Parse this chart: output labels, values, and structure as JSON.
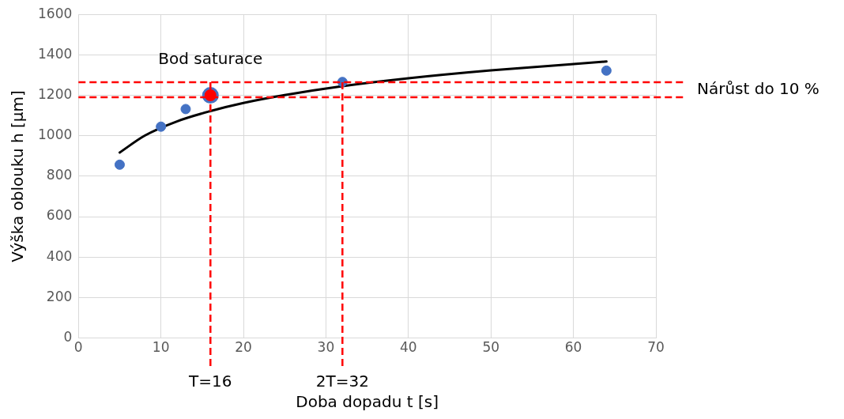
{
  "chart_data": {
    "type": "scatter",
    "xlabel": "Doba dopadu t [s]",
    "ylabel": "Výška oblouku h [μm]",
    "xlim": [
      0,
      70
    ],
    "xticks": [
      0,
      10,
      20,
      30,
      40,
      50,
      60,
      70
    ],
    "ylim": [
      0,
      1600
    ],
    "yticks": [
      0,
      200,
      400,
      600,
      800,
      1000,
      1200,
      1400,
      1600
    ],
    "grid": true,
    "legend": false,
    "marker": "circle",
    "series": [
      {
        "type": "scatter",
        "color": "#4472c4",
        "x": [
          5,
          10,
          13,
          32,
          64
        ],
        "values": [
          857,
          1045,
          1132,
          1266,
          1322
        ]
      },
      {
        "type": "scatter",
        "color": "#ff0000",
        "x": [
          16
        ],
        "values": [
          1200
        ]
      },
      {
        "type": "line",
        "color": "#000000",
        "marker": "none",
        "x": [
          5,
          8,
          12,
          16,
          20,
          25,
          32,
          40,
          50,
          64
        ],
        "values": [
          917,
          1000,
          1072,
          1122,
          1162,
          1201,
          1245,
          1284,
          1323,
          1367
        ]
      }
    ],
    "ref_lines": [
      {
        "axis": "y",
        "value": 1265,
        "label": "Nárůst do 10 %",
        "color": "#ff0000",
        "line_style": "dashed"
      },
      {
        "axis": "y",
        "value": 1190,
        "label": null,
        "color": "#ff0000",
        "line_style": "dashed"
      },
      {
        "axis": "x",
        "value": 16,
        "label": "T=16",
        "color": "#ff0000",
        "line_style": "dashed"
      },
      {
        "axis": "x",
        "value": 32,
        "label": "2T=32",
        "color": "#ff0000",
        "line_style": "dashed"
      }
    ],
    "annotations": [
      {
        "text": "Bod saturace",
        "x": 16,
        "y": 1200
      }
    ]
  }
}
